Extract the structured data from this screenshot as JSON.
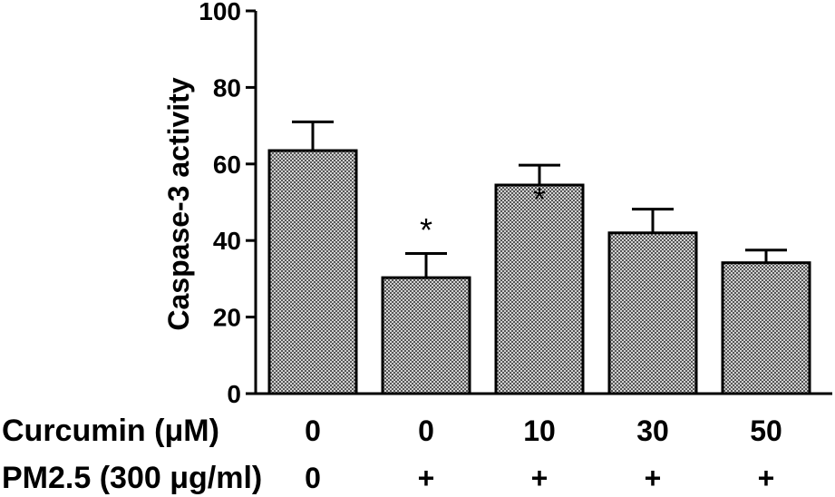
{
  "chart_data": {
    "type": "bar",
    "ylabel": "Caspase-3 activity",
    "ylim": [
      0,
      100
    ],
    "yticks": [
      0,
      20,
      40,
      60,
      80,
      100
    ],
    "grid": false,
    "category_rows": [
      {
        "label": "Curcumin (μM)",
        "values": [
          "0",
          "0",
          "10",
          "30",
          "50"
        ]
      },
      {
        "label": "PM2.5 (300 μg/ml)",
        "values": [
          "0",
          "+",
          "+",
          "+",
          "+"
        ]
      }
    ],
    "values": [
      63.5,
      30.3,
      54.5,
      42.0,
      34.2
    ],
    "errors": [
      7.5,
      6.3,
      5.2,
      6.2,
      3.3
    ],
    "annotations": [
      "",
      "*",
      "*",
      "",
      ""
    ]
  },
  "colors": {
    "bar_pattern_dark": "#555555",
    "bar_pattern_light": "#d2d2d2",
    "axis": "#000000"
  }
}
